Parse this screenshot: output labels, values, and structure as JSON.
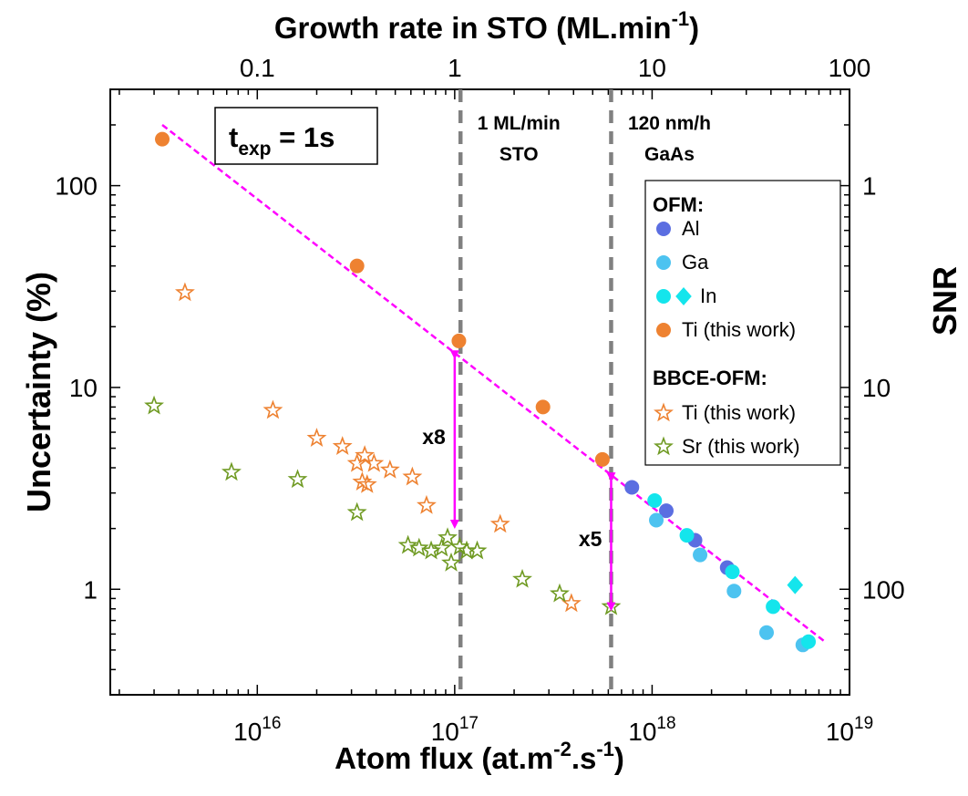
{
  "chart_data": {
    "type": "scatter",
    "x_scale": "log",
    "y_scale": "log",
    "xlim": [
      1800000000000000.0,
      1e+19
    ],
    "ylim": [
      0.3,
      300
    ],
    "grid": false,
    "x_title": {
      "main": "Atom flux (at.m",
      "sup1": "-2",
      "mid": ".s",
      "sup2": "-1",
      "end": ")"
    },
    "top_title": {
      "main": "Growth rate in STO (ML.min",
      "sup": "-1",
      "end": ")"
    },
    "y_left_title": "Uncertainty (%)",
    "y_right_title": "SNR",
    "x_ticks": [
      {
        "value": 1e+16,
        "base": "10",
        "exp": "16"
      },
      {
        "value": 1e+17,
        "base": "10",
        "exp": "17"
      },
      {
        "value": 1e+18,
        "base": "10",
        "exp": "18"
      },
      {
        "value": 1e+19,
        "base": "10",
        "exp": "19"
      }
    ],
    "top_ticks": [
      {
        "rate": 0.1,
        "label": "0.1"
      },
      {
        "rate": 1,
        "label": "1"
      },
      {
        "rate": 10,
        "label": "10"
      },
      {
        "rate": 100,
        "label": "100"
      }
    ],
    "top_axis_flux_per_rate": 1e+17,
    "y_ticks": [
      {
        "value": 1,
        "label": "1"
      },
      {
        "value": 10,
        "label": "10"
      },
      {
        "value": 100,
        "label": "100"
      }
    ],
    "y_right_ticks": [
      {
        "uncertainty": 100,
        "label": "1"
      },
      {
        "uncertainty": 10,
        "label": "10"
      },
      {
        "uncertainty": 1,
        "label": "100"
      }
    ],
    "annotation_box": {
      "main": "t",
      "sub": "exp",
      "rest": " = 1s"
    },
    "vlines": [
      {
        "x": 1.07e+17,
        "line1": "1 ML/min",
        "line2": "STO"
      },
      {
        "x": 6.2e+17,
        "line1": "120 nm/h",
        "line2": "GaAs"
      }
    ],
    "fit_line": {
      "points": [
        [
          3300000000000000.0,
          200
        ],
        [
          7.5e+18,
          0.55
        ]
      ],
      "color": "#ff00ff"
    },
    "arrows": [
      {
        "x": 1e+17,
        "y_top": 14.5,
        "y_bottom": 2.1,
        "label": "x8"
      },
      {
        "x": 6.2e+17,
        "y_top": 3.6,
        "y_bottom": 0.82,
        "label": "x5"
      }
    ],
    "legend": {
      "position": "right",
      "group1_title": "OFM:",
      "group2_title": "BBCE-OFM:"
    },
    "series": [
      {
        "name": "Al",
        "group": "OFM",
        "marker": "circle",
        "color": "#5b6ee1",
        "points": [
          [
            7.9e+17,
            3.2
          ],
          [
            1.18e+18,
            2.45
          ],
          [
            1.65e+18,
            1.75
          ],
          [
            2.4e+18,
            1.28
          ]
        ]
      },
      {
        "name": "Ga",
        "group": "OFM",
        "marker": "circle",
        "color": "#4dc3f0",
        "points": [
          [
            1.05e+18,
            2.2
          ],
          [
            1.75e+18,
            1.48
          ],
          [
            2.6e+18,
            0.98
          ],
          [
            3.8e+18,
            0.61
          ],
          [
            5.8e+18,
            0.53
          ]
        ]
      },
      {
        "name": "In",
        "group": "OFM",
        "marker": "circle",
        "color": "#14e5ec",
        "points": [
          [
            1.03e+18,
            2.75
          ],
          [
            1.5e+18,
            1.85
          ],
          [
            2.55e+18,
            1.22
          ],
          [
            4.1e+18,
            0.82
          ],
          [
            6.2e+18,
            0.55
          ]
        ]
      },
      {
        "name": "In",
        "group": "OFM",
        "marker": "diamond",
        "color": "#14e5ec",
        "legend_merge": true,
        "points": [
          [
            5.3e+18,
            1.05
          ]
        ]
      },
      {
        "name": "Ti (this work)",
        "group": "OFM",
        "marker": "circle",
        "color": "#ee8231",
        "points": [
          [
            3300000000000000.0,
            170
          ],
          [
            3.2e+16,
            40
          ],
          [
            1.05e+17,
            17
          ],
          [
            2.8e+17,
            8.0
          ],
          [
            5.6e+17,
            4.4
          ]
        ]
      },
      {
        "name": "Ti (this work)",
        "group": "BBCE-OFM",
        "marker": "star",
        "color": "#ee8231",
        "points": [
          [
            4300000000000000.0,
            29.5
          ],
          [
            1.2e+16,
            7.7
          ],
          [
            2e+16,
            5.6
          ],
          [
            2.7e+16,
            5.1
          ],
          [
            3.2e+16,
            4.2
          ],
          [
            3.5e+16,
            4.6
          ],
          [
            3.4e+16,
            3.4
          ],
          [
            3.9e+16,
            4.2
          ],
          [
            3.6e+16,
            3.3
          ],
          [
            4.7e+16,
            3.9
          ],
          [
            6.1e+16,
            3.6
          ],
          [
            7.2e+16,
            2.6
          ],
          [
            1.7e+17,
            2.1
          ],
          [
            3.9e+17,
            0.85
          ]
        ]
      },
      {
        "name": "Sr (this work)",
        "group": "BBCE-OFM",
        "marker": "star",
        "color": "#6f9a22",
        "points": [
          [
            3000000000000000.0,
            8.1
          ],
          [
            7400000000000000.0,
            3.8
          ],
          [
            1.6e+16,
            3.5
          ],
          [
            3.2e+16,
            2.4
          ],
          [
            5.8e+16,
            1.65
          ],
          [
            6.6e+16,
            1.6
          ],
          [
            7.6e+16,
            1.55
          ],
          [
            8.6e+16,
            1.6
          ],
          [
            9.2e+16,
            1.8
          ],
          [
            9.6e+16,
            1.35
          ],
          [
            1.06e+17,
            1.62
          ],
          [
            1.15e+17,
            1.55
          ],
          [
            1.3e+17,
            1.55
          ],
          [
            2.2e+17,
            1.12
          ],
          [
            3.4e+17,
            0.95
          ],
          [
            6.2e+17,
            0.82
          ]
        ]
      }
    ]
  }
}
